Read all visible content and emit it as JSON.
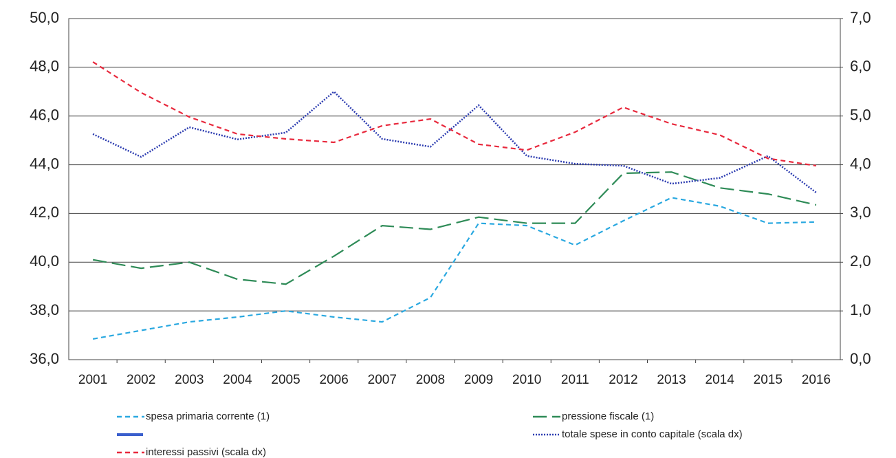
{
  "chart_data": {
    "type": "line",
    "categories": [
      "2001",
      "2002",
      "2003",
      "2004",
      "2005",
      "2006",
      "2007",
      "2008",
      "2009",
      "2010",
      "2011",
      "2012",
      "2013",
      "2014",
      "2015",
      "2016"
    ],
    "ylim": [
      36,
      50
    ],
    "yticks": [
      {
        "value": 36,
        "label": "36,0"
      },
      {
        "value": 38,
        "label": "38,0"
      },
      {
        "value": 40,
        "label": "40,0"
      },
      {
        "value": 42,
        "label": "42,0"
      },
      {
        "value": 44,
        "label": "44,0"
      },
      {
        "value": 46,
        "label": "46,0"
      },
      {
        "value": 48,
        "label": "48,0"
      },
      {
        "value": 50,
        "label": "50,0"
      }
    ],
    "y2lim": [
      0,
      7
    ],
    "y2ticks": [
      {
        "value": 0,
        "label": "0,0"
      },
      {
        "value": 1,
        "label": "1,0"
      },
      {
        "value": 2,
        "label": "2,0"
      },
      {
        "value": 3,
        "label": "3,0"
      },
      {
        "value": 4,
        "label": "4,0"
      },
      {
        "value": 5,
        "label": "5,0"
      },
      {
        "value": 6,
        "label": "6,0"
      },
      {
        "value": 7,
        "label": "7,0"
      }
    ],
    "grid": true,
    "series": [
      {
        "name": "spesa primaria corrente (1)",
        "color": "#29a8e0",
        "dash": "dashed",
        "values": [
          36.85,
          37.2,
          37.55,
          37.75,
          38.0,
          37.75,
          37.55,
          38.55,
          41.6,
          41.5,
          40.7,
          41.7,
          42.65,
          42.3,
          41.6,
          41.65
        ]
      },
      {
        "name": "pressione fiscale (1)",
        "color": "#2e8b57",
        "dash": "long-dashed",
        "values": [
          40.1,
          39.75,
          40.0,
          39.3,
          39.1,
          40.25,
          41.5,
          41.35,
          41.85,
          41.6,
          41.6,
          43.65,
          43.7,
          43.05,
          42.8,
          42.35
        ]
      },
      {
        "name": "totale spese in conto capitale (scala dx)",
        "color": "#2b3bb0",
        "dash": "dotted",
        "axis": "y2",
        "values": [
          4.63,
          4.16,
          4.77,
          4.52,
          4.66,
          5.5,
          4.53,
          4.37,
          5.22,
          4.18,
          4.02,
          3.98,
          3.61,
          3.73,
          4.18,
          3.43
        ]
      },
      {
        "name": "interessi passivi (scala dx)",
        "color": "#e8283c",
        "dash": "dashed",
        "axis": "y2",
        "values": [
          6.11,
          5.48,
          4.98,
          4.63,
          4.53,
          4.46,
          4.8,
          4.94,
          4.42,
          4.3,
          4.67,
          5.18,
          4.84,
          4.61,
          4.13,
          3.98
        ]
      }
    ]
  }
}
